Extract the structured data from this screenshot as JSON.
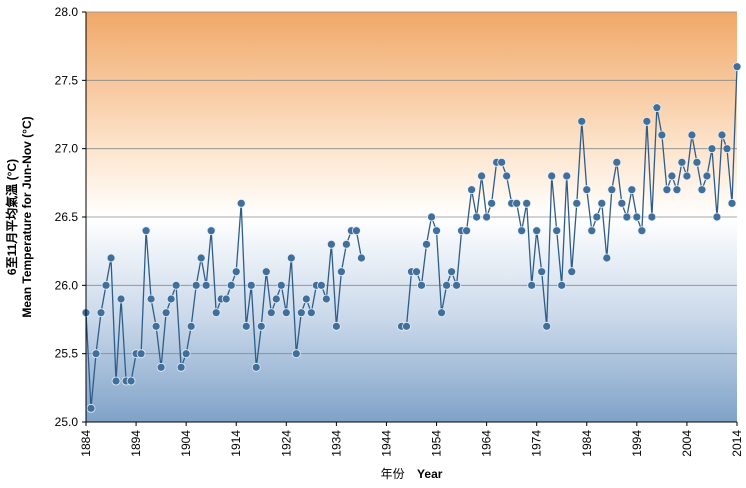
{
  "chart_data": {
    "type": "line",
    "xlabel_zh": "年份",
    "xlabel_en": "Year",
    "ylabel_zh": "6至11月平均氣溫 (°C)",
    "ylabel_en": "Mean Temperature for Jun-Nov (°C)",
    "xlim": [
      1884,
      2014
    ],
    "ylim": [
      25.0,
      28.0
    ],
    "x_ticks": [
      1884,
      1894,
      1904,
      1914,
      1924,
      1934,
      1944,
      1954,
      1964,
      1974,
      1984,
      1994,
      2004,
      2014
    ],
    "y_ticks": [
      "25.0",
      "25.5",
      "26.0",
      "26.5",
      "27.0",
      "27.5",
      "28.0"
    ],
    "grid": true,
    "background_gradient": [
      "#f0a868",
      "#fde4cc",
      "#ffffff",
      "#c9d8ea",
      "#7fa2c8"
    ],
    "line_color": "#2f5d88",
    "marker_fill": "#3f6f9a",
    "marker_stroke": "#e8eef5",
    "series": [
      {
        "x": [
          1884,
          1885,
          1886,
          1887,
          1888,
          1889,
          1890,
          1891,
          1892,
          1893,
          1894,
          1895,
          1896,
          1897,
          1898,
          1899,
          1900,
          1901,
          1902,
          1903,
          1904,
          1905,
          1906,
          1907,
          1908,
          1909,
          1910,
          1911,
          1912,
          1913,
          1914,
          1915,
          1916,
          1917,
          1918,
          1919,
          1920,
          1921,
          1922,
          1923,
          1924,
          1925,
          1926,
          1927,
          1928,
          1929,
          1930,
          1931,
          1932,
          1933,
          1934,
          1935,
          1936,
          1937,
          1938,
          1939,
          null,
          1947,
          1948,
          1949,
          1950,
          1951,
          1952,
          1953,
          1954,
          1955,
          1956,
          1957,
          1958,
          1959,
          1960,
          1961,
          1962,
          1963,
          1964,
          1965,
          1966,
          1967,
          1968,
          1969,
          1970,
          1971,
          1972,
          1973,
          1974,
          1975,
          1976,
          1977,
          1978,
          1979,
          1980,
          1981,
          1982,
          1983,
          1984,
          1985,
          1986,
          1987,
          1988,
          1989,
          1990,
          1991,
          1992,
          1993,
          1994,
          1995,
          1996,
          1997,
          1998,
          1999,
          2000,
          2001,
          2002,
          2003,
          2004,
          2005,
          2006,
          2007,
          2008,
          2009,
          2010,
          2011,
          2012,
          2013,
          2014
        ],
        "y": [
          25.8,
          25.1,
          25.5,
          25.8,
          26.0,
          26.2,
          25.3,
          25.9,
          25.3,
          25.3,
          25.5,
          25.5,
          26.4,
          25.9,
          25.7,
          25.4,
          25.8,
          25.9,
          26.0,
          25.4,
          25.5,
          25.7,
          26.0,
          26.2,
          26.0,
          26.4,
          25.8,
          25.9,
          25.9,
          26.0,
          26.1,
          26.6,
          25.7,
          26.0,
          25.4,
          25.7,
          26.1,
          25.8,
          25.9,
          26.0,
          25.8,
          26.2,
          25.5,
          25.8,
          25.9,
          25.8,
          26.0,
          26.0,
          25.9,
          26.3,
          25.7,
          26.1,
          26.3,
          26.4,
          26.4,
          26.2,
          null,
          25.7,
          25.7,
          26.1,
          26.1,
          26.0,
          26.3,
          26.5,
          26.4,
          25.8,
          26.0,
          26.1,
          26.0,
          26.4,
          26.4,
          26.7,
          26.5,
          26.8,
          26.5,
          26.6,
          26.9,
          26.9,
          26.8,
          26.6,
          26.6,
          26.4,
          26.6,
          26.0,
          26.4,
          26.1,
          25.7,
          26.8,
          26.4,
          26.0,
          26.8,
          26.1,
          26.6,
          27.2,
          26.7,
          26.4,
          26.5,
          26.6,
          26.2,
          26.7,
          26.9,
          26.6,
          26.5,
          26.7,
          26.5,
          26.4,
          27.2,
          26.5,
          27.3,
          27.1,
          26.7,
          26.8,
          26.7,
          26.9,
          26.8,
          27.1,
          26.9,
          26.7,
          26.8,
          27.0,
          26.5,
          27.1,
          27.0,
          26.6,
          27.6
        ]
      }
    ]
  }
}
